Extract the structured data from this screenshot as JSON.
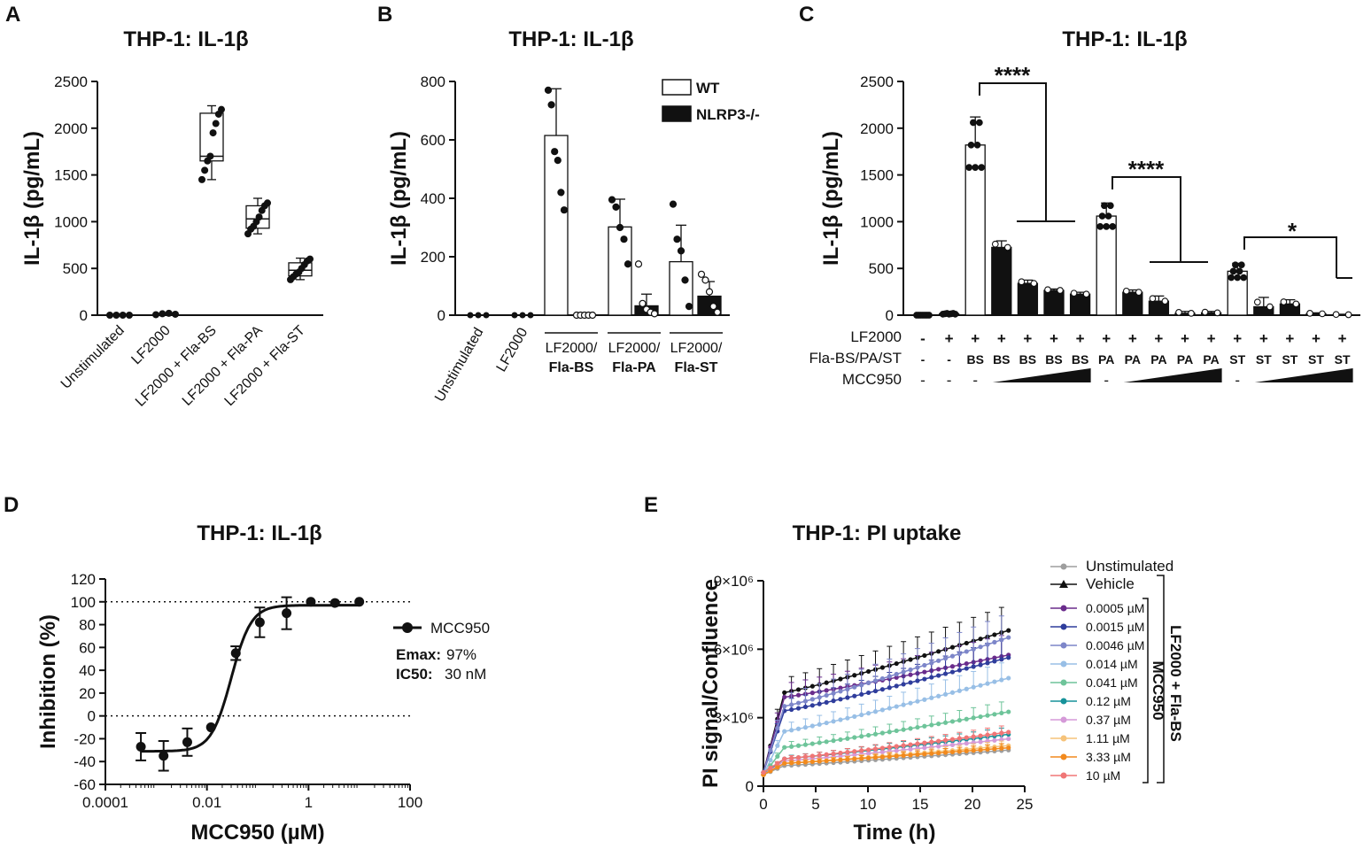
{
  "chart_data": [
    {
      "panel": "A",
      "type": "box",
      "title": "THP-1: IL-1β",
      "ylabel": "IL-1β (pg/mL)",
      "ylim": [
        0,
        2500
      ],
      "yticks": [
        "0",
        "500",
        "1000",
        "1500",
        "2000",
        "2500"
      ],
      "categories": [
        "Unstimulated",
        "LF2000",
        "LF2000 + Fla-BS",
        "LF2000 + Fla-PA",
        "LF2000 + Fla-ST"
      ],
      "boxes": [
        {
          "min": 0,
          "q1": 0,
          "median": 0,
          "q3": 5,
          "max": 5,
          "points": [
            0,
            0,
            0,
            0
          ]
        },
        {
          "min": 0,
          "q1": 5,
          "median": 10,
          "q3": 15,
          "max": 20,
          "points": [
            5,
            15,
            20,
            10
          ]
        },
        {
          "min": 1450,
          "q1": 1650,
          "median": 1700,
          "q3": 2160,
          "max": 2240,
          "points": [
            1450,
            1550,
            1650,
            1700,
            1950,
            2050,
            2150,
            2200
          ]
        },
        {
          "min": 870,
          "q1": 930,
          "median": 1030,
          "q3": 1170,
          "max": 1250,
          "points": [
            870,
            920,
            950,
            1000,
            1050,
            1120,
            1170,
            1200
          ]
        },
        {
          "min": 380,
          "q1": 420,
          "median": 480,
          "q3": 560,
          "max": 610,
          "points": [
            380,
            410,
            440,
            460,
            500,
            540,
            580,
            600
          ]
        }
      ],
      "panel_label": "A"
    },
    {
      "panel": "B",
      "type": "bar",
      "title": "THP-1: IL-1β",
      "ylabel": "IL-1β (pg/mL)",
      "ylim": [
        0,
        800
      ],
      "yticks": [
        "0",
        "200",
        "400",
        "600",
        "800"
      ],
      "single_categories": [
        "Unstimulated",
        "LF2000"
      ],
      "group_labels": [
        {
          "top": "LF2000/",
          "bottom": "Fla-BS"
        },
        {
          "top": "LF2000/",
          "bottom": "Fla-PA"
        },
        {
          "top": "LF2000/",
          "bottom": "Fla-ST"
        }
      ],
      "series": [
        {
          "name": "WT",
          "values": [
            0,
            0,
            615,
            302,
            183
          ],
          "sd": [
            0,
            0,
            160,
            95,
            125
          ],
          "points": [
            [
              0,
              0,
              0
            ],
            [
              0,
              0,
              0
            ],
            [
              770,
              720,
              560,
              530,
              420,
              360
            ],
            [
              395,
              370,
              300,
              260,
              175
            ],
            [
              380,
              260,
              220,
              120,
              30
            ]
          ]
        },
        {
          "name": "NLRP3-/-",
          "values": [
            null,
            null,
            0,
            32,
            65
          ],
          "sd": [
            0,
            0,
            0,
            40,
            50
          ],
          "points": [
            [],
            [],
            [
              0,
              0,
              0,
              0,
              0
            ],
            [
              175,
              40,
              20,
              10,
              5
            ],
            [
              140,
              120,
              80,
              30,
              10
            ]
          ]
        }
      ],
      "legend": [
        "WT",
        "NLRP3-/-"
      ],
      "panel_label": "B"
    },
    {
      "panel": "C",
      "type": "bar",
      "title": "THP-1: IL-1β",
      "ylabel": "IL-1β (pg/mL)",
      "ylim": [
        0,
        2500
      ],
      "yticks": [
        "0",
        "500",
        "1000",
        "1500",
        "2000",
        "2500"
      ],
      "values": [
        0,
        15,
        1820,
        725,
        340,
        265,
        225,
        1060,
        245,
        150,
        20,
        25,
        470,
        90,
        120,
        15,
        5
      ],
      "sd": [
        0,
        5,
        300,
        70,
        35,
        15,
        20,
        140,
        25,
        55,
        20,
        15,
        85,
        100,
        45,
        10,
        5
      ],
      "fills": [
        "white",
        "white",
        "white",
        "black",
        "black",
        "black",
        "black",
        "white",
        "black",
        "black",
        "black",
        "black",
        "white",
        "black",
        "black",
        "black",
        "black"
      ],
      "row_labels": [
        "LF2000",
        "Fla-BS/PA/ST",
        "MCC950"
      ],
      "lf2000_row": [
        "-",
        "+",
        "+",
        "+",
        "+",
        "+",
        "+",
        "+",
        "+",
        "+",
        "+",
        "+",
        "+",
        "+",
        "+",
        "+",
        "+"
      ],
      "fla_row": [
        "-",
        "-",
        "BS",
        "BS",
        "BS",
        "BS",
        "BS",
        "PA",
        "PA",
        "PA",
        "PA",
        "PA",
        "ST",
        "ST",
        "ST",
        "ST",
        "ST"
      ],
      "mcc950_row": [
        "-",
        "-",
        "-",
        "",
        "",
        "",
        "",
        "-",
        "",
        "",
        "",
        "",
        "-",
        "",
        "",
        "",
        ""
      ],
      "significance": [
        "****",
        "****",
        "*"
      ],
      "panel_label": "C"
    },
    {
      "panel": "D",
      "type": "line",
      "title": "THP-1: IL-1β",
      "xlabel": "MCC950 (µM)",
      "ylabel": "Inhibition (%)",
      "xscale": "log",
      "xlim": [
        0.0001,
        100
      ],
      "ylim": [
        -60,
        120
      ],
      "xticks": [
        "0.0001",
        "0.01",
        "1",
        "100"
      ],
      "yticks": [
        "-60",
        "-40",
        "-20",
        "0",
        "20",
        "40",
        "60",
        "80",
        "100",
        "120"
      ],
      "series": [
        {
          "name": "MCC950",
          "x": [
            0.0005,
            0.0014,
            0.0041,
            0.012,
            0.037,
            0.11,
            0.37,
            1.11,
            3.33,
            10
          ],
          "y": [
            -27,
            -35,
            -23,
            -10,
            55,
            82,
            90,
            100,
            99,
            100
          ],
          "err": [
            12,
            13,
            12,
            0,
            6,
            13,
            14,
            0,
            0,
            0
          ]
        }
      ],
      "reference_lines": [
        100,
        0
      ],
      "annotation": {
        "emax_label": "Emax:",
        "emax_value": "97%",
        "ic50_label": "IC50:",
        "ic50_value": "30 nM"
      },
      "panel_label": "D"
    },
    {
      "panel": "E",
      "type": "line",
      "title": "THP-1: PI uptake",
      "xlabel": "Time (h)",
      "ylabel": "PI signal/Confluence",
      "xlim": [
        0,
        25
      ],
      "ylim": [
        0,
        9000000
      ],
      "xticks": [
        "0",
        "5",
        "10",
        "15",
        "20",
        "25"
      ],
      "yticks": [
        "0",
        "3×10⁶",
        "6×10⁶",
        "9×10⁶"
      ],
      "series": [
        {
          "name": "Unstimulated",
          "color": "#9e9e9e",
          "start": 0.5,
          "early": 0.9,
          "end": 1.6
        },
        {
          "name": "Vehicle",
          "color": "#111111",
          "start": 0.6,
          "early": 4.1,
          "end": 6.9
        },
        {
          "name": "0.0005 µM",
          "color": "#6a2c8c",
          "start": 0.6,
          "early": 3.9,
          "end": 5.8
        },
        {
          "name": "0.0015 µM",
          "color": "#2f3d9c",
          "start": 0.6,
          "early": 3.3,
          "end": 5.7
        },
        {
          "name": "0.0046 µM",
          "color": "#7d86c9",
          "start": 0.6,
          "early": 3.5,
          "end": 6.6
        },
        {
          "name": "0.014 µM",
          "color": "#98bfe6",
          "start": 0.5,
          "early": 2.4,
          "end": 4.8
        },
        {
          "name": "0.041 µM",
          "color": "#6ec49a",
          "start": 0.5,
          "early": 1.7,
          "end": 3.3
        },
        {
          "name": "0.12 µM",
          "color": "#17929a",
          "start": 0.5,
          "early": 1.2,
          "end": 2.3
        },
        {
          "name": "0.37 µM",
          "color": "#d59ad8",
          "start": 0.5,
          "early": 1.1,
          "end": 2.1
        },
        {
          "name": "1.11 µM",
          "color": "#f6c37a",
          "start": 0.5,
          "early": 1.0,
          "end": 1.8
        },
        {
          "name": "3.33 µM",
          "color": "#f28a1e",
          "start": 0.5,
          "early": 1.0,
          "end": 1.7
        },
        {
          "name": "10 µM",
          "color": "#f07676",
          "start": 0.6,
          "early": 1.2,
          "end": 2.4
        }
      ],
      "bracket_labels": [
        "MCC950",
        "LF2000 + Fla-BS"
      ],
      "panel_label": "E"
    }
  ]
}
